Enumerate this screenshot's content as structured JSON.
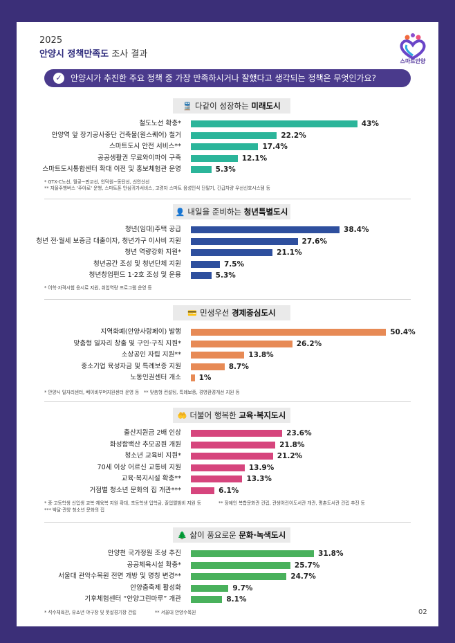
{
  "header": {
    "year": "2025",
    "title_bold": "안양시 정책만족도",
    "title_rest": " 조사 결과"
  },
  "logo": {
    "text": "스마트안양"
  },
  "question": "안양시가 추진한 주요 정책 중 가장 만족하시거나 잘했다고 생각되는 정책은 무엇인가요?",
  "page_number": "02",
  "colors": {
    "frame": "#3b2f78",
    "question_bar": "#4a3a8c",
    "section_bg": "#eaeaea"
  },
  "chart_data": [
    {
      "type": "bar",
      "orientation": "horizontal",
      "title_plain": "다같이 성장하는",
      "title_bold": "미래도시",
      "icon": "train-icon",
      "color": "#2bb59a",
      "categories": [
        "철도노선 확충*",
        "안양역 앞 장기공사중단 건축물(원스퀘어) 철거",
        "스마트도시 안전 서비스**",
        "공공생활권 무료와이파이 구축",
        "스마트도시통합센터 확대 이전 및 홍보체험관 운영"
      ],
      "values": [
        43,
        22.2,
        17.4,
        12.1,
        5.3
      ],
      "value_labels": [
        "43%",
        "22.2%",
        "17.4%",
        "12.1%",
        "5.3%"
      ],
      "notes": [
        [
          "* GTX-C노선, 월곶~판교선, 인덕원~동탄선, 신안산선"
        ],
        [
          "** 자율주행버스 '주야로' 운행, 스마트폰 안심귀가서비스, 고령자 스마트 음성인식 단말기, 긴급차량 우선신호시스템 등"
        ]
      ]
    },
    {
      "type": "bar",
      "orientation": "horizontal",
      "title_plain": "내일을 준비하는",
      "title_bold": "청년특별도시",
      "icon": "person-icon",
      "color": "#2e4f9e",
      "categories": [
        "청년(임대)주택 공급",
        "청년 전·월세 보증금 대출이자, 청년가구 이사비 지원",
        "청년 역량강화 지원*",
        "청년공간 조성 및 청년단체 지원",
        "청년창업펀드 1·2호 조성 및 운용"
      ],
      "values": [
        38.4,
        27.6,
        21.1,
        7.5,
        5.3
      ],
      "value_labels": [
        "38.4%",
        "27.6%",
        "21.1%",
        "7.5%",
        "5.3%"
      ],
      "notes": [
        [
          "* 어학·자격시험 응시료 지원, 취업역량 프로그램 운영 등"
        ]
      ]
    },
    {
      "type": "bar",
      "orientation": "horizontal",
      "title_plain": "민생우선",
      "title_bold": "경제중심도시",
      "icon": "wallet-icon",
      "color": "#e78a55",
      "categories": [
        "지역화폐(안양사랑페이) 발행",
        "맞춤형 일자리 창출 및 구인·구직 지원*",
        "소상공인 자립 지원**",
        "중소기업 육성자금 및 특례보증 지원",
        "노동인권센터 개소"
      ],
      "values": [
        50.4,
        26.2,
        13.8,
        8.7,
        1
      ],
      "value_labels": [
        "50.4%",
        "26.2%",
        "13.8%",
        "8.7%",
        "1%"
      ],
      "notes": [
        [
          "* 안양시 일자리센터, 베이비부머지원센터 운영 등",
          "** 맞춤형 컨설팅, 특례보증, 경영환경개선 지원 등"
        ]
      ]
    },
    {
      "type": "bar",
      "orientation": "horizontal",
      "title_plain": "더불어 행복한",
      "title_bold": "교육·복지도시",
      "icon": "care-hand-icon",
      "color": "#d6457d",
      "categories": [
        "출산지원금 2배 인상",
        "화성함백산 추모공원 개원",
        "청소년 교육비 지원*",
        "70세 이상 어르신 교통비 지원",
        "교육·복지시설 확충**",
        "거점별 청소년 문화의 집 개관***"
      ],
      "values": [
        23.6,
        21.8,
        21.2,
        13.9,
        13.3,
        6.1
      ],
      "value_labels": [
        "23.6%",
        "21.8%",
        "21.2%",
        "13.9%",
        "13.3%",
        "6.1%"
      ],
      "notes": [
        [
          "* 중·고등학생 신입생 교복·체육복 지원 확대, 초등학생 입학금, 졸업앨범비 지원 등",
          "** 장애인 복합문화관 건립, 관생어린이도서관 개관, 평촌도서관 건립 추진 등"
        ],
        [
          "*** 박달·관양 청소년 문화의 집"
        ]
      ]
    },
    {
      "type": "bar",
      "orientation": "horizontal",
      "title_plain": "삶이 풍요로운",
      "title_bold": "문화·녹색도시",
      "icon": "trees-icon",
      "color": "#49b15c",
      "categories": [
        "안양천 국가정원 조성 추진",
        "공공체육시설 확충*",
        "서울대 관악수목원 전면 개방 및 명칭 변경**",
        "안양춤축제 활성화",
        "기후체험센터 “안양그린마루” 개관"
      ],
      "values": [
        31.8,
        25.7,
        24.7,
        9.7,
        8.1
      ],
      "value_labels": [
        "31.8%",
        "25.7%",
        "24.7%",
        "9.7%",
        "8.1%"
      ],
      "notes": [
        [
          "* 석수체육관, 유소년 야구장 및 풋살경기장 건립",
          "** 서울대 안양수목원"
        ]
      ]
    }
  ]
}
